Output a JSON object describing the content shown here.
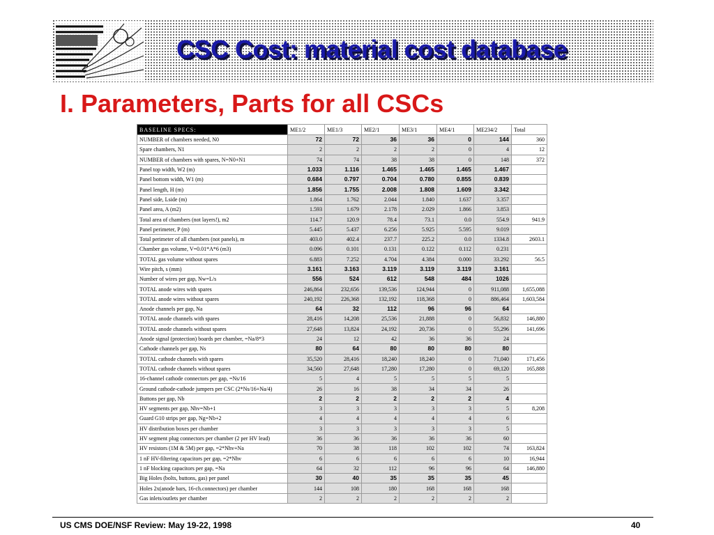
{
  "header": {
    "title": "CSC Cost: material cost database"
  },
  "subtitle": "I. Parameters, Parts for all CSCs",
  "table": {
    "columns": [
      "BASELINE  SPECS:",
      "ME1/2",
      "ME1/3",
      "ME2/1",
      "ME3/1",
      "ME4/1",
      "ME234/2",
      "Total"
    ],
    "rows": [
      {
        "label": "NUMBER of chambers needed, N0",
        "values": [
          "72",
          "72",
          "36",
          "36",
          "0",
          "144"
        ],
        "total": "360",
        "bold": true
      },
      {
        "label": "Spare chambers, N1",
        "values": [
          "2",
          "2",
          "2",
          "2",
          "0",
          "4"
        ],
        "total": "12",
        "bold": false
      },
      {
        "label": "NUMBER of chambers with spares, N=N0+N1",
        "values": [
          "74",
          "74",
          "38",
          "38",
          "0",
          "148"
        ],
        "total": "372",
        "bold": false
      },
      {
        "label": "Panel top width, W2 (m)",
        "values": [
          "1.033",
          "1.116",
          "1.465",
          "1.465",
          "1.465",
          "1.467"
        ],
        "total": "",
        "bold": true
      },
      {
        "label": "Panel bottom width, W1 (m)",
        "values": [
          "0.684",
          "0.797",
          "0.704",
          "0.780",
          "0.855",
          "0.839"
        ],
        "total": "",
        "bold": true
      },
      {
        "label": "Panel length, H (m)",
        "values": [
          "1.856",
          "1.755",
          "2.008",
          "1.808",
          "1.609",
          "3.342"
        ],
        "total": "",
        "bold": true
      },
      {
        "label": "Panel side, Lside (m)",
        "values": [
          "1.864",
          "1.762",
          "2.044",
          "1.840",
          "1.637",
          "3.357"
        ],
        "total": "",
        "bold": false
      },
      {
        "label": "Panel area, A (m2)",
        "values": [
          "1.593",
          "1.679",
          "2.178",
          "2.029",
          "1.866",
          "3.853"
        ],
        "total": "",
        "bold": false
      },
      {
        "label": "Total area of chambers (not layers!), m2",
        "values": [
          "114.7",
          "120.9",
          "78.4",
          "73.1",
          "0.0",
          "554.9"
        ],
        "total": "941.9",
        "bold": false
      },
      {
        "label": "Panel perimeter, P (m)",
        "values": [
          "5.445",
          "5.437",
          "6.256",
          "5.925",
          "5.595",
          "9.019"
        ],
        "total": "",
        "bold": false
      },
      {
        "label": "Total perimeter of all chambers (not panels), m",
        "values": [
          "403.0",
          "402.4",
          "237.7",
          "225.2",
          "0.0",
          "1334.8"
        ],
        "total": "2603.1",
        "bold": false
      },
      {
        "label": "Chamber gas volume, V=0.01*A*6 (m3)",
        "values": [
          "0.096",
          "0.101",
          "0.131",
          "0.122",
          "0.112",
          "0.231"
        ],
        "total": "",
        "bold": false
      },
      {
        "label": "TOTAL gas volume without spares",
        "values": [
          "6.883",
          "7.252",
          "4.704",
          "4.384",
          "0.000",
          "33.292"
        ],
        "total": "56.5",
        "bold": false
      },
      {
        "label": "Wire pitch, s (mm)",
        "values": [
          "3.161",
          "3.163",
          "3.119",
          "3.119",
          "3.119",
          "3.161"
        ],
        "total": "",
        "bold": true
      },
      {
        "label": "Number of wires per gap, Nw=L/s",
        "values": [
          "556",
          "524",
          "612",
          "548",
          "484",
          "1026"
        ],
        "total": "",
        "bold": true
      },
      {
        "label": "TOTAL anode wires with spares",
        "values": [
          "246,864",
          "232,656",
          "139,536",
          "124,944",
          "0",
          "911,088"
        ],
        "total": "1,655,088",
        "bold": false
      },
      {
        "label": "TOTAL anode wires without spares",
        "values": [
          "240,192",
          "226,368",
          "132,192",
          "118,368",
          "0",
          "886,464"
        ],
        "total": "1,603,584",
        "bold": false
      },
      {
        "label": "Anode channels per gap, Na",
        "values": [
          "64",
          "32",
          "112",
          "96",
          "96",
          "64"
        ],
        "total": "",
        "bold": true
      },
      {
        "label": "TOTAL anode channels with spares",
        "values": [
          "28,416",
          "14,208",
          "25,536",
          "21,888",
          "0",
          "56,832"
        ],
        "total": "146,880",
        "bold": false
      },
      {
        "label": "TOTAL anode channels without spares",
        "values": [
          "27,648",
          "13,824",
          "24,192",
          "20,736",
          "0",
          "55,296"
        ],
        "total": "141,696",
        "bold": false
      },
      {
        "label": "Anode signal (protection) boards per chamber, =Na/8*3",
        "values": [
          "24",
          "12",
          "42",
          "36",
          "36",
          "24"
        ],
        "total": "",
        "bold": false
      },
      {
        "label": "Cathode channels per gap, Ns",
        "values": [
          "80",
          "64",
          "80",
          "80",
          "80",
          "80"
        ],
        "total": "",
        "bold": true
      },
      {
        "label": "TOTAL cathode channels with spares",
        "values": [
          "35,520",
          "28,416",
          "18,240",
          "18,240",
          "0",
          "71,040"
        ],
        "total": "171,456",
        "bold": false
      },
      {
        "label": "TOTAL cathode channels without spares",
        "values": [
          "34,560",
          "27,648",
          "17,280",
          "17,280",
          "0",
          "69,120"
        ],
        "total": "165,888",
        "bold": false
      },
      {
        "label": "16-channel cathode connectors per gap, =Ns/16",
        "values": [
          "5",
          "4",
          "5",
          "5",
          "5",
          "5"
        ],
        "total": "",
        "bold": false
      },
      {
        "label": "Ground cathode-cathode jumpers per CSC (2*Ns/16+Na/4)",
        "values": [
          "26",
          "16",
          "38",
          "34",
          "34",
          "26"
        ],
        "total": "",
        "bold": false
      },
      {
        "label": "Buttons per gap, Nb",
        "values": [
          "2",
          "2",
          "2",
          "2",
          "2",
          "4"
        ],
        "total": "",
        "bold": true
      },
      {
        "label": "HV segments per gap, Nhv=Nb+1",
        "values": [
          "3",
          "3",
          "3",
          "3",
          "3",
          "5"
        ],
        "total": "8,208",
        "bold": false
      },
      {
        "label": "Guard G10 strips per gap, Ng=Nb+2",
        "values": [
          "4",
          "4",
          "4",
          "4",
          "4",
          "6"
        ],
        "total": "",
        "bold": false
      },
      {
        "label": "HV distribution boxes per chamber",
        "values": [
          "3",
          "3",
          "3",
          "3",
          "3",
          "5"
        ],
        "total": "",
        "bold": false
      },
      {
        "label": "HV segment plug connectors per chamber (2 per HV lead)",
        "values": [
          "36",
          "36",
          "36",
          "36",
          "36",
          "60"
        ],
        "total": "",
        "bold": false
      },
      {
        "label": "HV resistors (1M & 5M) per gap, =2*Nhv+Na",
        "values": [
          "70",
          "38",
          "118",
          "102",
          "102",
          "74"
        ],
        "total": "163,824",
        "bold": false
      },
      {
        "label": "1 nF HV-filtering capacitors per gap, =2*Nhv",
        "values": [
          "6",
          "6",
          "6",
          "6",
          "6",
          "10"
        ],
        "total": "16,944",
        "bold": false
      },
      {
        "label": "1 nF blocking capacitors per gap, =Na",
        "values": [
          "64",
          "32",
          "112",
          "96",
          "96",
          "64"
        ],
        "total": "146,880",
        "bold": false
      },
      {
        "label": "Big Holes (bolts, buttons, gas) per panel",
        "values": [
          "30",
          "40",
          "35",
          "35",
          "35",
          "45"
        ],
        "total": "",
        "bold": true
      },
      {
        "label": "Holes 2x(anode bars, 16-ch.connectors) per chamber",
        "values": [
          "144",
          "108",
          "180",
          "168",
          "168",
          "168"
        ],
        "total": "",
        "bold": false
      },
      {
        "label": "Gas inlets/outlets per chamber",
        "values": [
          "2",
          "2",
          "2",
          "2",
          "2",
          "2"
        ],
        "total": "",
        "bold": false
      }
    ]
  },
  "footer": {
    "left": "US CMS DOE/NSF Review:  May 19-22, 1998",
    "page": "40"
  }
}
